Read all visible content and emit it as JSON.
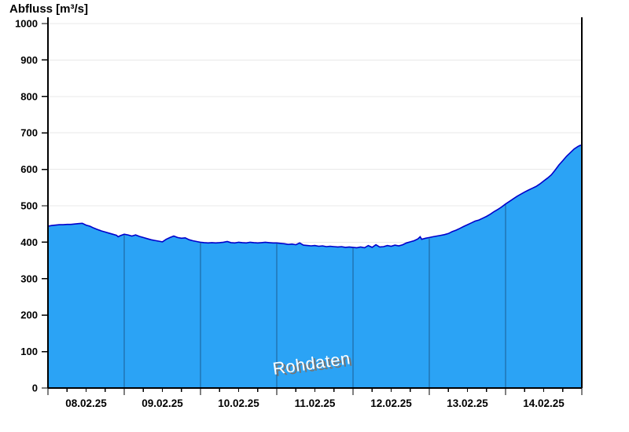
{
  "page": {
    "title": "Abfluss [m³/s]",
    "watermark": "Rohdaten"
  },
  "chart_data": {
    "type": "area",
    "title": "Abfluss [m³/s]",
    "ylabel": "Abfluss [m³/s]",
    "unit": "m³/s",
    "watermark": "Rohdaten",
    "legend": "none",
    "grid": "horizontal",
    "ylim": [
      0,
      1000
    ],
    "y_ticks": [
      0,
      100,
      200,
      300,
      400,
      500,
      600,
      700,
      800,
      900,
      1000
    ],
    "x_range_days": [
      0,
      7
    ],
    "x_tick_labels": [
      "08.02.25",
      "09.02.25",
      "10.02.25",
      "11.02.25",
      "12.02.25",
      "13.02.25",
      "14.02.25"
    ],
    "minor_x_tick_hours": 6,
    "day_separators": [
      1,
      2,
      3,
      4,
      5,
      6
    ],
    "colors": {
      "fill": "#2BA3F5",
      "line": "#0000CC",
      "separator": "#1B5E94",
      "grid": "#E9E9E9",
      "axis": "#000000",
      "text": "#000000",
      "watermark_fill": "#FFFFFF",
      "watermark_shadow": "#757575"
    },
    "series": [
      {
        "name": "Rohdaten",
        "points": [
          [
            0,
            444
          ],
          [
            0.05,
            446
          ],
          [
            0.1,
            447
          ],
          [
            0.15,
            448
          ],
          [
            0.2,
            448
          ],
          [
            0.25,
            449
          ],
          [
            0.3,
            449
          ],
          [
            0.35,
            450
          ],
          [
            0.4,
            451
          ],
          [
            0.45,
            452
          ],
          [
            0.5,
            447
          ],
          [
            0.55,
            444
          ],
          [
            0.6,
            439
          ],
          [
            0.65,
            435
          ],
          [
            0.7,
            431
          ],
          [
            0.75,
            428
          ],
          [
            0.8,
            425
          ],
          [
            0.85,
            422
          ],
          [
            0.9,
            419
          ],
          [
            0.92,
            415
          ],
          [
            0.95,
            418
          ],
          [
            1,
            422
          ],
          [
            1.05,
            420
          ],
          [
            1.1,
            417
          ],
          [
            1.15,
            420
          ],
          [
            1.2,
            416
          ],
          [
            1.25,
            413
          ],
          [
            1.3,
            410
          ],
          [
            1.35,
            407
          ],
          [
            1.4,
            405
          ],
          [
            1.45,
            403
          ],
          [
            1.5,
            401
          ],
          [
            1.55,
            408
          ],
          [
            1.6,
            413
          ],
          [
            1.65,
            417
          ],
          [
            1.7,
            413
          ],
          [
            1.75,
            411
          ],
          [
            1.8,
            412
          ],
          [
            1.85,
            407
          ],
          [
            1.9,
            404
          ],
          [
            1.95,
            402
          ],
          [
            2,
            400
          ],
          [
            2.05,
            399
          ],
          [
            2.1,
            398
          ],
          [
            2.15,
            399
          ],
          [
            2.2,
            398
          ],
          [
            2.25,
            399
          ],
          [
            2.3,
            400
          ],
          [
            2.35,
            402
          ],
          [
            2.4,
            399
          ],
          [
            2.45,
            398
          ],
          [
            2.5,
            400
          ],
          [
            2.55,
            399
          ],
          [
            2.6,
            398
          ],
          [
            2.65,
            400
          ],
          [
            2.7,
            399
          ],
          [
            2.75,
            398
          ],
          [
            2.8,
            399
          ],
          [
            2.85,
            400
          ],
          [
            2.9,
            399
          ],
          [
            2.95,
            398
          ],
          [
            3,
            398
          ],
          [
            3.05,
            397
          ],
          [
            3.1,
            396
          ],
          [
            3.15,
            394
          ],
          [
            3.2,
            395
          ],
          [
            3.25,
            393
          ],
          [
            3.3,
            398
          ],
          [
            3.35,
            392
          ],
          [
            3.4,
            391
          ],
          [
            3.45,
            390
          ],
          [
            3.5,
            391
          ],
          [
            3.55,
            389
          ],
          [
            3.6,
            390
          ],
          [
            3.65,
            388
          ],
          [
            3.7,
            389
          ],
          [
            3.75,
            388
          ],
          [
            3.8,
            387
          ],
          [
            3.85,
            388
          ],
          [
            3.9,
            386
          ],
          [
            3.95,
            387
          ],
          [
            4,
            386
          ],
          [
            4.05,
            385
          ],
          [
            4.1,
            387
          ],
          [
            4.15,
            385
          ],
          [
            4.2,
            391
          ],
          [
            4.25,
            386
          ],
          [
            4.3,
            393
          ],
          [
            4.35,
            387
          ],
          [
            4.4,
            388
          ],
          [
            4.45,
            391
          ],
          [
            4.5,
            389
          ],
          [
            4.55,
            392
          ],
          [
            4.6,
            390
          ],
          [
            4.65,
            393
          ],
          [
            4.7,
            398
          ],
          [
            4.75,
            401
          ],
          [
            4.8,
            404
          ],
          [
            4.85,
            409
          ],
          [
            4.88,
            415
          ],
          [
            4.9,
            408
          ],
          [
            4.95,
            411
          ],
          [
            5,
            413
          ],
          [
            5.05,
            415
          ],
          [
            5.1,
            417
          ],
          [
            5.15,
            419
          ],
          [
            5.2,
            421
          ],
          [
            5.25,
            424
          ],
          [
            5.3,
            429
          ],
          [
            5.35,
            433
          ],
          [
            5.4,
            438
          ],
          [
            5.45,
            443
          ],
          [
            5.5,
            448
          ],
          [
            5.55,
            453
          ],
          [
            5.6,
            458
          ],
          [
            5.65,
            461
          ],
          [
            5.7,
            466
          ],
          [
            5.75,
            471
          ],
          [
            5.8,
            477
          ],
          [
            5.85,
            484
          ],
          [
            5.9,
            490
          ],
          [
            5.95,
            497
          ],
          [
            6,
            505
          ],
          [
            6.05,
            512
          ],
          [
            6.1,
            519
          ],
          [
            6.15,
            526
          ],
          [
            6.2,
            532
          ],
          [
            6.25,
            538
          ],
          [
            6.3,
            543
          ],
          [
            6.35,
            548
          ],
          [
            6.4,
            553
          ],
          [
            6.45,
            560
          ],
          [
            6.5,
            568
          ],
          [
            6.55,
            576
          ],
          [
            6.6,
            585
          ],
          [
            6.65,
            598
          ],
          [
            6.7,
            612
          ],
          [
            6.75,
            624
          ],
          [
            6.8,
            636
          ],
          [
            6.85,
            646
          ],
          [
            6.9,
            656
          ],
          [
            6.95,
            663
          ],
          [
            6.98,
            666
          ],
          [
            7,
            665
          ]
        ]
      }
    ]
  }
}
